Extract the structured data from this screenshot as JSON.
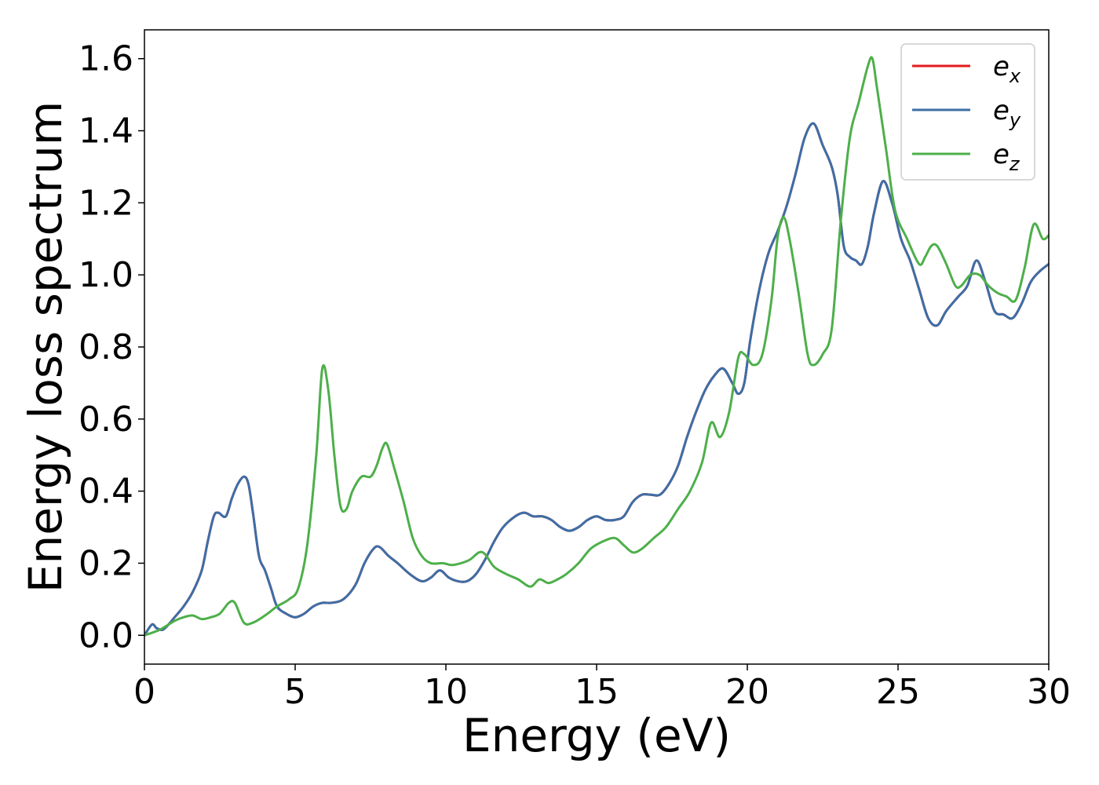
{
  "chart_data": {
    "type": "line",
    "title": "",
    "xlabel": "Energy (eV)",
    "ylabel": "Energy loss spectrum",
    "xlim": [
      0,
      30
    ],
    "ylim": [
      -0.08,
      1.68
    ],
    "xticks": [
      0,
      5,
      10,
      15,
      20,
      25,
      30
    ],
    "xtick_labels": [
      "0",
      "5",
      "10",
      "15",
      "20",
      "25",
      "30"
    ],
    "yticks": [
      0.0,
      0.2,
      0.4,
      0.6,
      0.8,
      1.0,
      1.2,
      1.4,
      1.6
    ],
    "ytick_labels": [
      "0.0",
      "0.2",
      "0.4",
      "0.6",
      "0.8",
      "1.0",
      "1.2",
      "1.4",
      "1.6"
    ],
    "grid": false,
    "legend_position": "top-right",
    "series": [
      {
        "name": "e",
        "subscript": "x",
        "color": "#e41a1c",
        "x": [
          0,
          0.25,
          0.4,
          0.6,
          0.8,
          1.0,
          1.3,
          1.6,
          1.9,
          2.1,
          2.3,
          2.45,
          2.7,
          2.9,
          3.1,
          3.3,
          3.45,
          3.6,
          3.8,
          4.0,
          4.2,
          4.4,
          4.7,
          5.0,
          5.3,
          5.6,
          5.9,
          6.2,
          6.6,
          7.0,
          7.3,
          7.6,
          7.8,
          8.1,
          8.4,
          8.8,
          9.2,
          9.5,
          9.8,
          10.1,
          10.4,
          10.7,
          11.0,
          11.3,
          11.6,
          11.9,
          12.3,
          12.6,
          12.9,
          13.2,
          13.5,
          13.8,
          14.1,
          14.4,
          14.7,
          15.0,
          15.3,
          15.6,
          15.9,
          16.2,
          16.5,
          16.8,
          17.1,
          17.4,
          17.7,
          18.0,
          18.3,
          18.6,
          18.9,
          19.2,
          19.5,
          19.7,
          19.9,
          20.1,
          20.4,
          20.7,
          21.0,
          21.3,
          21.6,
          21.9,
          22.2,
          22.5,
          22.8,
          23.0,
          23.2,
          23.4,
          23.6,
          23.8,
          24.0,
          24.2,
          24.5,
          24.8,
          25.1,
          25.4,
          25.7,
          26.0,
          26.3,
          26.6,
          27.0,
          27.3,
          27.6,
          27.9,
          28.2,
          28.5,
          28.8,
          29.1,
          29.4,
          29.7,
          30.0
        ],
        "y": [
          0.0,
          0.03,
          0.02,
          0.015,
          0.03,
          0.05,
          0.08,
          0.12,
          0.18,
          0.26,
          0.33,
          0.34,
          0.33,
          0.38,
          0.42,
          0.44,
          0.42,
          0.34,
          0.22,
          0.18,
          0.13,
          0.08,
          0.06,
          0.05,
          0.06,
          0.08,
          0.09,
          0.09,
          0.1,
          0.14,
          0.2,
          0.24,
          0.245,
          0.22,
          0.2,
          0.17,
          0.15,
          0.16,
          0.18,
          0.16,
          0.15,
          0.15,
          0.17,
          0.21,
          0.26,
          0.3,
          0.33,
          0.34,
          0.33,
          0.33,
          0.32,
          0.3,
          0.29,
          0.3,
          0.32,
          0.33,
          0.32,
          0.32,
          0.33,
          0.37,
          0.39,
          0.39,
          0.39,
          0.42,
          0.47,
          0.55,
          0.62,
          0.68,
          0.72,
          0.74,
          0.7,
          0.67,
          0.7,
          0.82,
          0.96,
          1.06,
          1.12,
          1.19,
          1.28,
          1.38,
          1.42,
          1.36,
          1.3,
          1.22,
          1.08,
          1.05,
          1.04,
          1.03,
          1.08,
          1.17,
          1.26,
          1.2,
          1.1,
          1.04,
          0.96,
          0.88,
          0.86,
          0.9,
          0.94,
          0.97,
          1.04,
          0.98,
          0.9,
          0.89,
          0.88,
          0.92,
          0.98,
          1.01,
          1.03
        ]
      },
      {
        "name": "e",
        "subscript": "y",
        "color": "#3d6ea6",
        "x": [
          0,
          0.25,
          0.4,
          0.6,
          0.8,
          1.0,
          1.3,
          1.6,
          1.9,
          2.1,
          2.3,
          2.45,
          2.7,
          2.9,
          3.1,
          3.3,
          3.45,
          3.6,
          3.8,
          4.0,
          4.2,
          4.4,
          4.7,
          5.0,
          5.3,
          5.6,
          5.9,
          6.2,
          6.6,
          7.0,
          7.3,
          7.6,
          7.8,
          8.1,
          8.4,
          8.8,
          9.2,
          9.5,
          9.8,
          10.1,
          10.4,
          10.7,
          11.0,
          11.3,
          11.6,
          11.9,
          12.3,
          12.6,
          12.9,
          13.2,
          13.5,
          13.8,
          14.1,
          14.4,
          14.7,
          15.0,
          15.3,
          15.6,
          15.9,
          16.2,
          16.5,
          16.8,
          17.1,
          17.4,
          17.7,
          18.0,
          18.3,
          18.6,
          18.9,
          19.2,
          19.5,
          19.7,
          19.9,
          20.1,
          20.4,
          20.7,
          21.0,
          21.3,
          21.6,
          21.9,
          22.2,
          22.5,
          22.8,
          23.0,
          23.2,
          23.4,
          23.6,
          23.8,
          24.0,
          24.2,
          24.5,
          24.8,
          25.1,
          25.4,
          25.7,
          26.0,
          26.3,
          26.6,
          27.0,
          27.3,
          27.6,
          27.9,
          28.2,
          28.5,
          28.8,
          29.1,
          29.4,
          29.7,
          30.0
        ],
        "y": [
          0.0,
          0.03,
          0.02,
          0.015,
          0.03,
          0.05,
          0.08,
          0.12,
          0.18,
          0.26,
          0.33,
          0.34,
          0.33,
          0.38,
          0.42,
          0.44,
          0.42,
          0.34,
          0.22,
          0.18,
          0.13,
          0.08,
          0.06,
          0.05,
          0.06,
          0.08,
          0.09,
          0.09,
          0.1,
          0.14,
          0.2,
          0.24,
          0.245,
          0.22,
          0.2,
          0.17,
          0.15,
          0.16,
          0.18,
          0.16,
          0.15,
          0.15,
          0.17,
          0.21,
          0.26,
          0.3,
          0.33,
          0.34,
          0.33,
          0.33,
          0.32,
          0.3,
          0.29,
          0.3,
          0.32,
          0.33,
          0.32,
          0.32,
          0.33,
          0.37,
          0.39,
          0.39,
          0.39,
          0.42,
          0.47,
          0.55,
          0.62,
          0.68,
          0.72,
          0.74,
          0.7,
          0.67,
          0.7,
          0.82,
          0.96,
          1.06,
          1.12,
          1.19,
          1.28,
          1.38,
          1.42,
          1.36,
          1.3,
          1.22,
          1.08,
          1.05,
          1.04,
          1.03,
          1.08,
          1.17,
          1.26,
          1.2,
          1.1,
          1.04,
          0.96,
          0.88,
          0.86,
          0.9,
          0.94,
          0.97,
          1.04,
          0.98,
          0.9,
          0.89,
          0.88,
          0.92,
          0.98,
          1.01,
          1.03
        ]
      },
      {
        "name": "e",
        "subscript": "z",
        "color": "#4daf4a",
        "x": [
          0,
          0.5,
          1.0,
          1.3,
          1.6,
          1.9,
          2.2,
          2.5,
          2.8,
          3.0,
          3.3,
          3.6,
          4.0,
          4.4,
          4.8,
          5.1,
          5.4,
          5.7,
          5.9,
          6.1,
          6.3,
          6.5,
          6.7,
          6.9,
          7.2,
          7.5,
          7.7,
          7.9,
          8.05,
          8.3,
          8.6,
          8.9,
          9.2,
          9.5,
          9.9,
          10.2,
          10.5,
          10.8,
          11.1,
          11.3,
          11.6,
          12.0,
          12.4,
          12.8,
          13.1,
          13.4,
          13.7,
          14.0,
          14.4,
          14.8,
          15.2,
          15.6,
          15.9,
          16.2,
          16.5,
          16.9,
          17.3,
          17.7,
          18.1,
          18.5,
          18.8,
          19.1,
          19.4,
          19.7,
          19.9,
          20.2,
          20.5,
          20.8,
          21.0,
          21.2,
          21.4,
          21.7,
          22.0,
          22.2,
          22.5,
          22.8,
          23.1,
          23.4,
          23.7,
          24.0,
          24.15,
          24.3,
          24.6,
          24.9,
          25.3,
          25.7,
          25.9,
          26.1,
          26.3,
          26.6,
          26.9,
          27.1,
          27.4,
          27.7,
          28.0,
          28.3,
          28.6,
          28.9,
          29.2,
          29.5,
          29.8,
          30.0
        ],
        "y": [
          0.0,
          0.015,
          0.04,
          0.05,
          0.055,
          0.045,
          0.05,
          0.06,
          0.09,
          0.09,
          0.035,
          0.035,
          0.055,
          0.08,
          0.1,
          0.13,
          0.25,
          0.5,
          0.74,
          0.68,
          0.5,
          0.36,
          0.35,
          0.4,
          0.44,
          0.44,
          0.47,
          0.52,
          0.53,
          0.46,
          0.37,
          0.27,
          0.22,
          0.2,
          0.2,
          0.195,
          0.2,
          0.21,
          0.23,
          0.225,
          0.19,
          0.17,
          0.155,
          0.135,
          0.155,
          0.145,
          0.155,
          0.17,
          0.2,
          0.24,
          0.26,
          0.27,
          0.25,
          0.23,
          0.24,
          0.27,
          0.3,
          0.35,
          0.4,
          0.48,
          0.59,
          0.55,
          0.62,
          0.77,
          0.78,
          0.75,
          0.78,
          0.93,
          1.1,
          1.16,
          1.1,
          0.95,
          0.78,
          0.75,
          0.78,
          0.85,
          1.15,
          1.38,
          1.48,
          1.58,
          1.6,
          1.52,
          1.35,
          1.18,
          1.1,
          1.03,
          1.05,
          1.08,
          1.08,
          1.03,
          0.97,
          0.97,
          1.0,
          1.0,
          0.97,
          0.95,
          0.94,
          0.93,
          1.02,
          1.14,
          1.1,
          1.11
        ]
      }
    ]
  }
}
